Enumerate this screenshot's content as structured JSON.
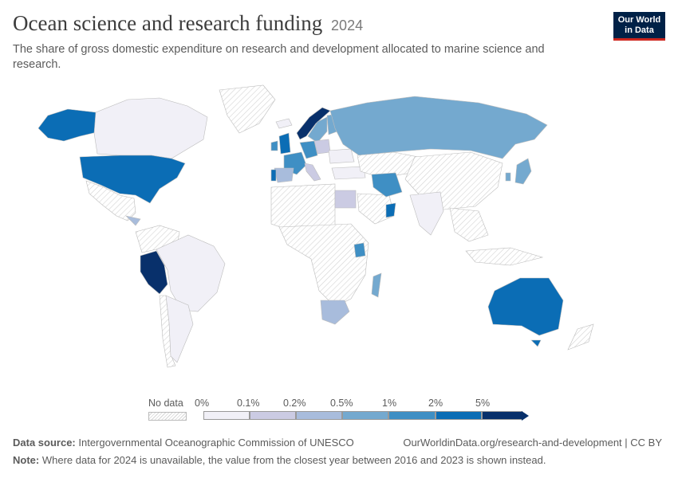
{
  "header": {
    "title": "Ocean science and research funding",
    "year": "2024",
    "subtitle": "The share of gross domestic expenditure on research and development allocated to marine science and research."
  },
  "logo": {
    "line1": "Our World",
    "line2": "in Data"
  },
  "legend": {
    "no_data_label": "No data",
    "ticks": [
      "0%",
      "0.1%",
      "0.2%",
      "0.5%",
      "1%",
      "2%",
      "5%"
    ],
    "colors": [
      "#f1f0f7",
      "#cbcbe3",
      "#a8bcdc",
      "#74a9cf",
      "#3f8fc4",
      "#0b6db5",
      "#08306b"
    ]
  },
  "footer": {
    "source_label": "Data source:",
    "source_text": "Intergovernmental Oceanographic Commission of UNESCO",
    "url": "OurWorldinData.org/research-and-development | CC BY",
    "note_label": "Note:",
    "note_text": "Where data for 2024 is unavailable, the value from the closest year between 2016 and 2023 is shown instead."
  },
  "colors": {
    "no_data": "#efefef",
    "below_01": "#f1f0f7",
    "bin_01_02": "#cbcbe3",
    "bin_02_05": "#a8bcdc",
    "bin_05_1": "#74a9cf",
    "bin_1_2": "#3f8fc4",
    "bin_2_5": "#0b6db5",
    "above_5": "#08306b"
  }
}
